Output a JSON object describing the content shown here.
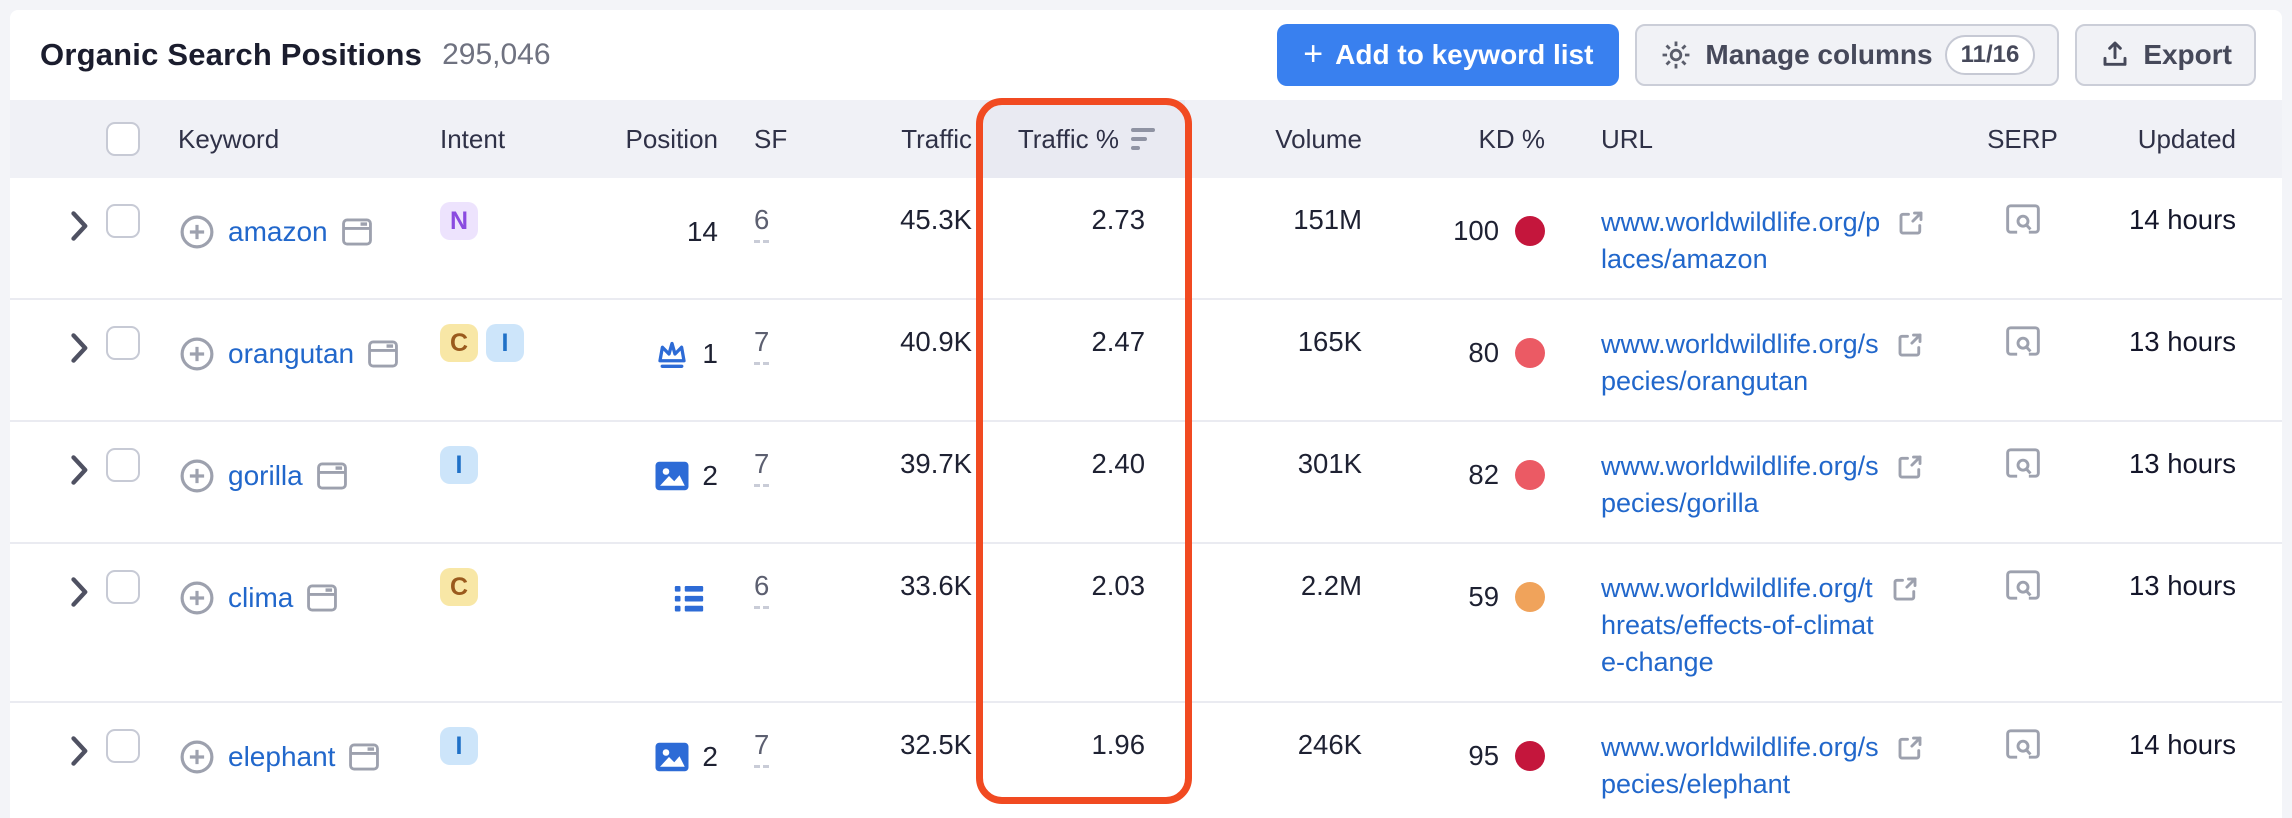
{
  "page": {
    "title": "Organic Search Positions",
    "count": "295,046"
  },
  "toolbar": {
    "add_button": {
      "plus": "+",
      "label": "Add to keyword list"
    },
    "manage_columns": {
      "label": "Manage columns",
      "badge": "11/16"
    },
    "export_label": "Export"
  },
  "colors": {
    "primary_button": "#3980EF",
    "highlight": "#F14A21",
    "link": "#2167CB",
    "header_bg": "#F0F1F6"
  },
  "table": {
    "headers": {
      "keyword": "Keyword",
      "intent": "Intent",
      "position": "Position",
      "sf": "SF",
      "traffic": "Traffic",
      "traffic_pct": "Traffic %",
      "volume": "Volume",
      "kd": "KD %",
      "url": "URL",
      "serp": "SERP",
      "updated": "Updated"
    },
    "intent_styles": {
      "N": {
        "bg": "#EDE3FD",
        "fg": "#8A4BE0"
      },
      "C": {
        "bg": "#F8E7A6",
        "fg": "#9A5A1D"
      },
      "I": {
        "bg": "#CDE5FA",
        "fg": "#2071C7"
      }
    },
    "rows": [
      {
        "keyword": "amazon",
        "intents": [
          "N"
        ],
        "position_icon": null,
        "position": "14",
        "sf": "6",
        "traffic": "45.3K",
        "traffic_pct": "2.73",
        "volume": "151M",
        "kd": "100",
        "kd_color": "#C4163C",
        "url_lines": [
          "www.worldwildlife.org/p",
          "laces/amazon"
        ],
        "updated": "14 hours"
      },
      {
        "keyword": "orangutan",
        "intents": [
          "C",
          "I"
        ],
        "position_icon": "crown",
        "position": "1",
        "sf": "7",
        "traffic": "40.9K",
        "traffic_pct": "2.47",
        "volume": "165K",
        "kd": "80",
        "kd_color": "#EB5A64",
        "url_lines": [
          "www.worldwildlife.org/s",
          "pecies/orangutan"
        ],
        "updated": "13 hours"
      },
      {
        "keyword": "gorilla",
        "intents": [
          "I"
        ],
        "position_icon": "image",
        "position": "2",
        "sf": "7",
        "traffic": "39.7K",
        "traffic_pct": "2.40",
        "volume": "301K",
        "kd": "82",
        "kd_color": "#EB5A64",
        "url_lines": [
          "www.worldwildlife.org/s",
          "pecies/gorilla"
        ],
        "updated": "13 hours"
      },
      {
        "keyword": "clima",
        "intents": [
          "C"
        ],
        "position_icon": "list",
        "position": "",
        "sf": "6",
        "traffic": "33.6K",
        "traffic_pct": "2.03",
        "volume": "2.2M",
        "kd": "59",
        "kd_color": "#F0A35B",
        "url_lines": [
          "www.worldwildlife.org/t",
          "hreats/effects-of-climat",
          "e-change"
        ],
        "updated": "13 hours"
      },
      {
        "keyword": "elephant",
        "intents": [
          "I"
        ],
        "position_icon": "image",
        "position": "2",
        "sf": "7",
        "traffic": "32.5K",
        "traffic_pct": "1.96",
        "volume": "246K",
        "kd": "95",
        "kd_color": "#C4163C",
        "url_lines": [
          "www.worldwildlife.org/s",
          "pecies/elephant"
        ],
        "updated": "14 hours"
      }
    ]
  }
}
